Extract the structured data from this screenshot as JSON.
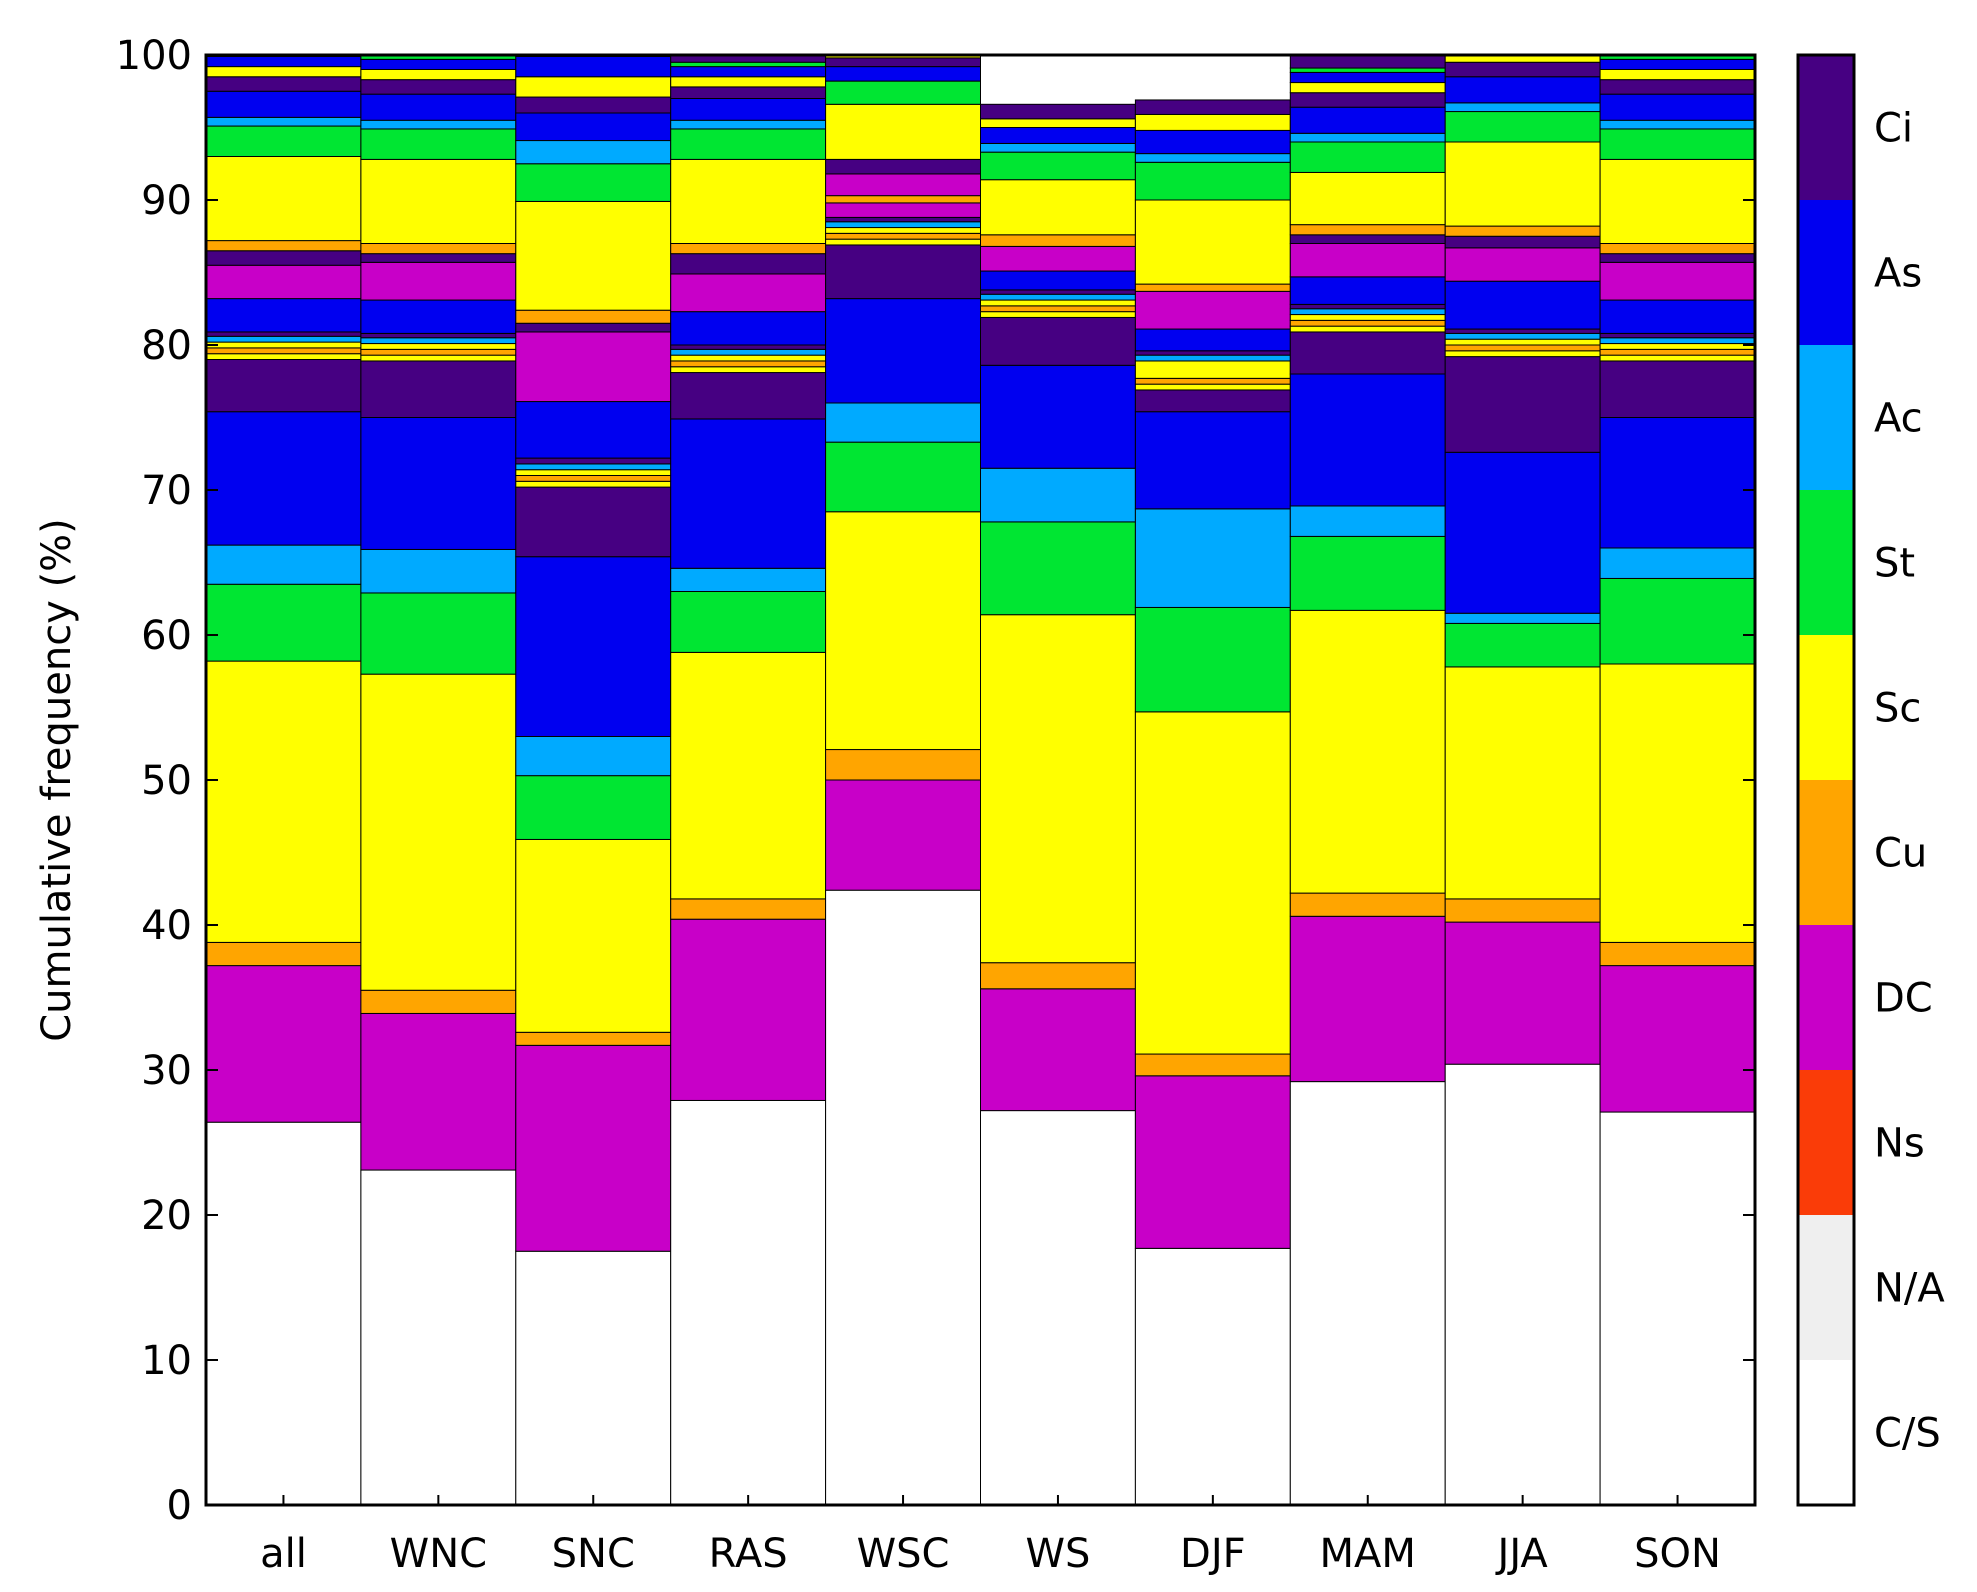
{
  "chart_data": {
    "type": "bar",
    "stacked": true,
    "ylabel": "Cumulative frequency (%)",
    "xlabel": "",
    "ylim": [
      0,
      100
    ],
    "yticks": [
      0,
      10,
      20,
      30,
      40,
      50,
      60,
      70,
      80,
      90,
      100
    ],
    "grid": false,
    "legend": {
      "position": "right colorbar",
      "order_top_to_bottom": [
        "Ci",
        "As",
        "Ac",
        "St",
        "Sc",
        "Cu",
        "DC",
        "Ns",
        "N/A",
        "C/S"
      ]
    },
    "colors": {
      "C/S": "#ffffff",
      "N/A": "#efefef",
      "Ns": "#fa3c08",
      "DC": "#c800c8",
      "Cu": "#ffa500",
      "Sc": "#ffff00",
      "St": "#00e632",
      "Ac": "#00aaff",
      "As": "#0000f0",
      "Ci": "#460082"
    },
    "categories": [
      "all",
      "WNC",
      "SNC",
      "RAS",
      "WSC",
      "WS",
      "DJF",
      "MAM",
      "JJA",
      "SON"
    ],
    "bars": [
      {
        "category": "all",
        "segments": [
          [
            "C/S",
            26.4
          ],
          [
            "DC",
            10.8
          ],
          [
            "Cu",
            1.6
          ],
          [
            "Sc",
            19.4
          ],
          [
            "St",
            5.3
          ],
          [
            "Ac",
            2.7
          ],
          [
            "As",
            9.2
          ],
          [
            "Ci",
            3.6
          ],
          [
            "Sc",
            0.4
          ],
          [
            "Cu",
            0.4
          ],
          [
            "Sc",
            0.4
          ],
          [
            "Ac",
            0.4
          ],
          [
            "Ci",
            0.3
          ],
          [
            "As",
            2.3
          ],
          [
            "DC",
            2.3
          ],
          [
            "Ci",
            1.0
          ],
          [
            "Cu",
            0.7
          ],
          [
            "Sc",
            5.8
          ],
          [
            "St",
            2.1
          ],
          [
            "Ac",
            0.6
          ],
          [
            "As",
            1.8
          ],
          [
            "Ci",
            1.0
          ],
          [
            "Sc",
            0.7
          ],
          [
            "As",
            0.7
          ],
          [
            "St",
            0.3
          ],
          [
            "Ci",
            0.9
          ]
        ]
      },
      {
        "category": "WNC",
        "segments": [
          [
            "C/S",
            23.1
          ],
          [
            "DC",
            10.8
          ],
          [
            "Cu",
            1.6
          ],
          [
            "Sc",
            21.8
          ],
          [
            "St",
            5.6
          ],
          [
            "Ac",
            3.0
          ],
          [
            "As",
            9.1
          ],
          [
            "Ci",
            3.9
          ],
          [
            "Sc",
            0.4
          ],
          [
            "Cu",
            0.4
          ],
          [
            "Sc",
            0.4
          ],
          [
            "Ac",
            0.4
          ],
          [
            "Ci",
            0.3
          ],
          [
            "As",
            2.3
          ],
          [
            "DC",
            2.6
          ],
          [
            "Ci",
            0.6
          ],
          [
            "Cu",
            0.7
          ],
          [
            "Sc",
            5.8
          ],
          [
            "St",
            2.1
          ],
          [
            "Ac",
            0.6
          ],
          [
            "As",
            1.8
          ],
          [
            "Ci",
            1.0
          ],
          [
            "Sc",
            0.7
          ],
          [
            "As",
            0.7
          ],
          [
            "St",
            0.3
          ],
          [
            "Ci",
            0.9
          ]
        ]
      },
      {
        "category": "SNC",
        "segments": [
          [
            "C/S",
            17.5
          ],
          [
            "DC",
            14.2
          ],
          [
            "Cu",
            0.9
          ],
          [
            "Sc",
            13.3
          ],
          [
            "St",
            4.4
          ],
          [
            "Ac",
            2.7
          ],
          [
            "As",
            12.4
          ],
          [
            "Ci",
            4.8
          ],
          [
            "Sc",
            0.4
          ],
          [
            "Cu",
            0.4
          ],
          [
            "Sc",
            0.4
          ],
          [
            "Ac",
            0.4
          ],
          [
            "Ci",
            0.4
          ],
          [
            "As",
            3.9
          ],
          [
            "DC",
            4.8
          ],
          [
            "Ci",
            0.6
          ],
          [
            "Cu",
            0.9
          ],
          [
            "Sc",
            7.5
          ],
          [
            "St",
            2.6
          ],
          [
            "Ac",
            1.6
          ],
          [
            "As",
            1.9
          ],
          [
            "Ci",
            1.1
          ],
          [
            "Sc",
            1.4
          ],
          [
            "As",
            1.4
          ],
          [
            "St",
            0.6
          ],
          [
            "Ci",
            0.9
          ]
        ]
      },
      {
        "category": "RAS",
        "segments": [
          [
            "C/S",
            27.9
          ],
          [
            "DC",
            12.5
          ],
          [
            "Cu",
            1.4
          ],
          [
            "Sc",
            17.0
          ],
          [
            "St",
            4.2
          ],
          [
            "Ac",
            1.6
          ],
          [
            "As",
            10.3
          ],
          [
            "Ci",
            3.2
          ],
          [
            "Sc",
            0.4
          ],
          [
            "Cu",
            0.4
          ],
          [
            "Sc",
            0.4
          ],
          [
            "Ac",
            0.4
          ],
          [
            "Ci",
            0.3
          ],
          [
            "As",
            2.3
          ],
          [
            "DC",
            2.6
          ],
          [
            "Ci",
            1.4
          ],
          [
            "Cu",
            0.7
          ],
          [
            "Sc",
            5.8
          ],
          [
            "St",
            2.1
          ],
          [
            "Ac",
            0.6
          ],
          [
            "As",
            1.5
          ],
          [
            "Ci",
            0.8
          ],
          [
            "Sc",
            0.7
          ],
          [
            "As",
            0.7
          ],
          [
            "St",
            0.3
          ],
          [
            "Ci",
            0.9
          ]
        ]
      },
      {
        "category": "WSC",
        "segments": [
          [
            "C/S",
            42.4
          ],
          [
            "DC",
            7.6
          ],
          [
            "Cu",
            2.1
          ],
          [
            "Sc",
            16.4
          ],
          [
            "St",
            4.8
          ],
          [
            "Ac",
            2.7
          ],
          [
            "As",
            7.2
          ],
          [
            "Ci",
            3.7
          ],
          [
            "Sc",
            0.4
          ],
          [
            "Cu",
            0.4
          ],
          [
            "Sc",
            0.4
          ],
          [
            "Ac",
            0.4
          ],
          [
            "Ci",
            0.3
          ],
          [
            "DC",
            1.0
          ],
          [
            "Cu",
            0.5
          ],
          [
            "DC",
            1.5
          ],
          [
            "Ci",
            1.0
          ],
          [
            "Sc",
            3.8
          ],
          [
            "St",
            1.6
          ],
          [
            "As",
            1.0
          ],
          [
            "Ci",
            0.6
          ],
          [
            "Sc",
            0.6
          ],
          [
            "Ci",
            0.5
          ]
        ]
      },
      {
        "category": "WS",
        "segments": [
          [
            "C/S",
            27.2
          ],
          [
            "DC",
            8.4
          ],
          [
            "Cu",
            1.8
          ],
          [
            "Sc",
            24.0
          ],
          [
            "St",
            6.4
          ],
          [
            "Ac",
            3.7
          ],
          [
            "As",
            7.1
          ],
          [
            "Ci",
            3.3
          ],
          [
            "Sc",
            0.4
          ],
          [
            "Cu",
            0.4
          ],
          [
            "Sc",
            0.4
          ],
          [
            "Ac",
            0.4
          ],
          [
            "Ci",
            0.3
          ],
          [
            "As",
            1.3
          ],
          [
            "DC",
            1.7
          ],
          [
            "Cu",
            0.8
          ],
          [
            "Sc",
            3.8
          ],
          [
            "St",
            1.9
          ],
          [
            "Ac",
            0.6
          ],
          [
            "As",
            1.1
          ],
          [
            "Sc",
            0.6
          ],
          [
            "Ci",
            1.0
          ]
        ]
      },
      {
        "category": "DJF",
        "segments": [
          [
            "C/S",
            17.7
          ],
          [
            "DC",
            11.9
          ],
          [
            "Cu",
            1.5
          ],
          [
            "Sc",
            23.6
          ],
          [
            "St",
            7.2
          ],
          [
            "Ac",
            6.8
          ],
          [
            "As",
            6.7
          ],
          [
            "Ci",
            1.5
          ],
          [
            "Sc",
            0.4
          ],
          [
            "Cu",
            0.4
          ],
          [
            "Sc",
            1.2
          ],
          [
            "Ac",
            0.4
          ],
          [
            "Ci",
            0.3
          ],
          [
            "As",
            1.5
          ],
          [
            "DC",
            2.6
          ],
          [
            "Cu",
            0.5
          ],
          [
            "Sc",
            5.8
          ],
          [
            "St",
            2.6
          ],
          [
            "Ac",
            0.6
          ],
          [
            "As",
            1.6
          ],
          [
            "Sc",
            1.1
          ],
          [
            "Ci",
            1.0
          ]
        ]
      },
      {
        "category": "MAM",
        "segments": [
          [
            "C/S",
            29.2
          ],
          [
            "DC",
            11.4
          ],
          [
            "Cu",
            1.6
          ],
          [
            "Sc",
            19.5
          ],
          [
            "St",
            5.1
          ],
          [
            "Ac",
            2.1
          ],
          [
            "As",
            9.1
          ],
          [
            "Ci",
            2.9
          ],
          [
            "Sc",
            0.4
          ],
          [
            "Cu",
            0.4
          ],
          [
            "Sc",
            0.4
          ],
          [
            "Ac",
            0.4
          ],
          [
            "Ci",
            0.3
          ],
          [
            "As",
            1.9
          ],
          [
            "DC",
            2.3
          ],
          [
            "Ci",
            0.6
          ],
          [
            "Cu",
            0.7
          ],
          [
            "Sc",
            3.6
          ],
          [
            "St",
            2.1
          ],
          [
            "Ac",
            0.6
          ],
          [
            "As",
            1.8
          ],
          [
            "Ci",
            1.0
          ],
          [
            "Sc",
            0.7
          ],
          [
            "As",
            0.7
          ],
          [
            "St",
            0.3
          ],
          [
            "Ci",
            0.9
          ]
        ]
      },
      {
        "category": "JJA",
        "segments": [
          [
            "C/S",
            30.4
          ],
          [
            "DC",
            9.8
          ],
          [
            "Cu",
            1.6
          ],
          [
            "Sc",
            16.0
          ],
          [
            "St",
            3.0
          ],
          [
            "Ac",
            0.7
          ],
          [
            "As",
            11.1
          ],
          [
            "Ci",
            6.6
          ],
          [
            "Sc",
            0.4
          ],
          [
            "Cu",
            0.4
          ],
          [
            "Sc",
            0.4
          ],
          [
            "Ac",
            0.4
          ],
          [
            "Ci",
            0.3
          ],
          [
            "As",
            3.3
          ],
          [
            "DC",
            2.3
          ],
          [
            "Ci",
            0.8
          ],
          [
            "Cu",
            0.7
          ],
          [
            "Sc",
            5.8
          ],
          [
            "St",
            2.1
          ],
          [
            "Ac",
            0.6
          ],
          [
            "As",
            1.8
          ],
          [
            "Ci",
            1.0
          ],
          [
            "Sc",
            0.7
          ],
          [
            "As",
            0.7
          ],
          [
            "St",
            0.3
          ],
          [
            "Ci",
            0.9
          ]
        ]
      },
      {
        "category": "SON",
        "segments": [
          [
            "C/S",
            27.1
          ],
          [
            "DC",
            10.1
          ],
          [
            "Cu",
            1.6
          ],
          [
            "Sc",
            19.2
          ],
          [
            "St",
            5.9
          ],
          [
            "Ac",
            2.1
          ],
          [
            "As",
            9.0
          ],
          [
            "Ci",
            3.9
          ],
          [
            "Sc",
            0.4
          ],
          [
            "Cu",
            0.4
          ],
          [
            "Sc",
            0.4
          ],
          [
            "Ac",
            0.4
          ],
          [
            "Ci",
            0.3
          ],
          [
            "As",
            2.3
          ],
          [
            "DC",
            2.6
          ],
          [
            "Ci",
            0.6
          ],
          [
            "Cu",
            0.7
          ],
          [
            "Sc",
            5.8
          ],
          [
            "St",
            2.1
          ],
          [
            "Ac",
            0.6
          ],
          [
            "As",
            1.8
          ],
          [
            "Ci",
            1.0
          ],
          [
            "Sc",
            0.7
          ],
          [
            "As",
            0.7
          ],
          [
            "St",
            0.3
          ],
          [
            "Ci",
            0.9
          ]
        ]
      }
    ]
  }
}
